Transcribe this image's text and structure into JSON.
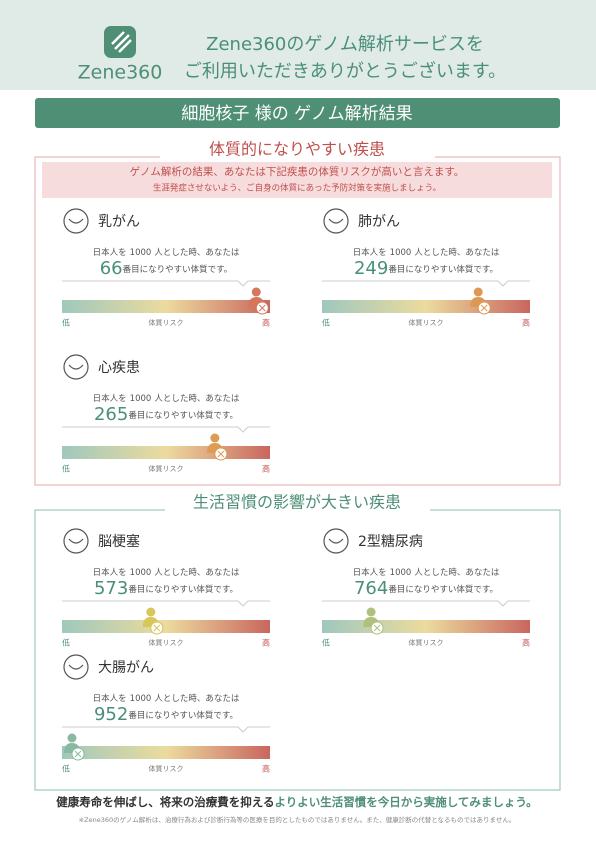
{
  "header": {
    "brand": "Zene360",
    "message_lines": [
      "Zene360のゲノム解析サービスを",
      "ご利用いただきありがとうございます。"
    ]
  },
  "banner": "細胞核子 様の ゲノム解析結果",
  "common": {
    "intro_before": "日本人を",
    "population": 1000,
    "intro_after": "人とした時、あなたは",
    "rank_suffix": "番目になりやすい体質です。",
    "scale_low": "低",
    "scale_label": "体質リスク",
    "scale_high": "高"
  },
  "sections": [
    {
      "title": "体質的になりやすい疾患",
      "notice": [
        "ゲノム解析の結果、あなたは下記疾患の体質リスクが高いと言えます。",
        "生涯発症させないよう、ご自身の体質にあった予防対策を実施しましょう。"
      ],
      "items": [
        {
          "name": "乳がん",
          "rank": 66
        },
        {
          "name": "肺がん",
          "rank": 249
        },
        {
          "name": "心疾患",
          "rank": 265
        }
      ]
    },
    {
      "title": "生活習慣の影響が大きい疾患",
      "items": [
        {
          "name": "脳梗塞",
          "rank": 573
        },
        {
          "name": "2型糖尿病",
          "rank": 764
        },
        {
          "name": "大腸がん",
          "rank": 952
        }
      ]
    }
  ],
  "footer": {
    "message_plain": "健康寿命を伸ばし、将来の治療費を抑える",
    "message_highlight": "よりよい生活習慣を今日から実施してみましょう。",
    "disclaimer": "※Zene360のゲノム解析は、治療行為および診断行為等の医療を目的としたものではありません。また、健康診断の代替となるものではありません。"
  }
}
